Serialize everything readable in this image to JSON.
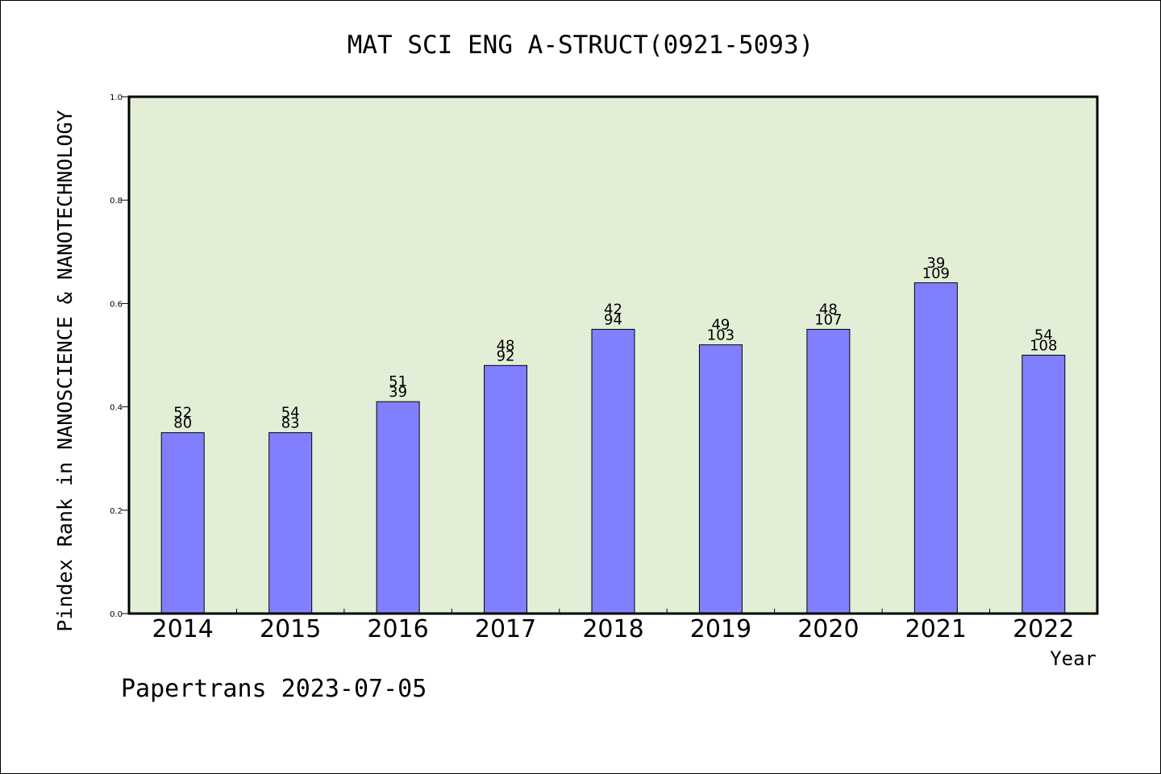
{
  "chart_data": {
    "type": "bar",
    "title": "MAT SCI ENG A-STRUCT(0921-5093)",
    "ylabel": "Pindex Rank in NANOSCIENCE & NANOTECHNOLOGY",
    "xlabel": "Year",
    "ylim": [
      0,
      1.0
    ],
    "yticks": [
      "0.0",
      "0.2",
      "0.4",
      "0.6",
      "0.8",
      "1.0"
    ],
    "grid": false,
    "plot_background": "#e2efd6",
    "bar_color": "#8080ff",
    "categories": [
      "2014",
      "2015",
      "2016",
      "2017",
      "2018",
      "2019",
      "2020",
      "2021",
      "2022"
    ],
    "values": [
      0.35,
      0.35,
      0.41,
      0.48,
      0.55,
      0.52,
      0.55,
      0.64,
      0.5
    ],
    "labels_top": [
      "52",
      "54",
      "51",
      "48",
      "42",
      "49",
      "48",
      "39",
      "54"
    ],
    "labels_bottom": [
      "80",
      "83",
      "39",
      "92",
      "94",
      "103",
      "107",
      "109",
      "108"
    ]
  },
  "footer": "Papertrans 2023-07-05"
}
